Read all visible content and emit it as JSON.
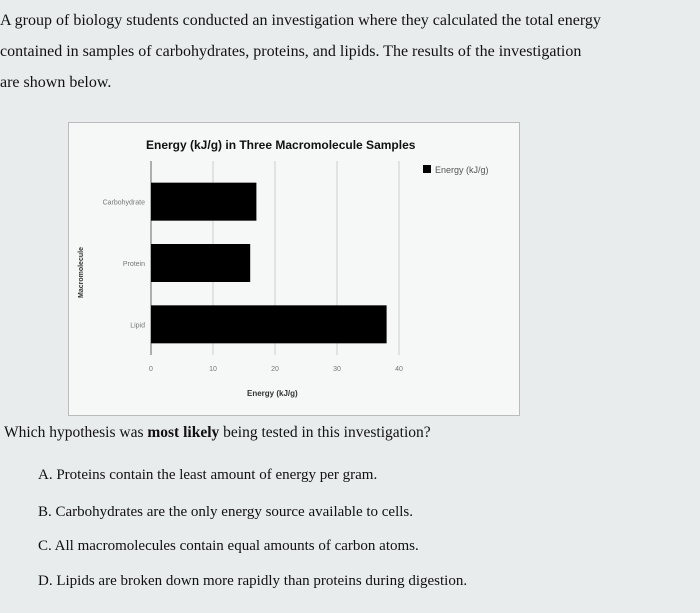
{
  "intro": [
    "A group of biology students conducted an investigation where they calculated the total energy",
    "contained in samples of carbohydrates, proteins, and lipids. The results of the investigation",
    "are shown below."
  ],
  "question": {
    "before": "Which hypothesis was ",
    "bold": "most likely",
    "after": " being tested in this investigation?"
  },
  "options": [
    "A.  Proteins contain the least amount of energy per gram.",
    "B.  Carbohydrates are the only energy source available to cells.",
    "C.  All macromolecules contain equal amounts of carbon atoms.",
    "D.  Lipids are broken down more rapidly than proteins during digestion."
  ],
  "chart_data": {
    "type": "bar",
    "orientation": "horizontal",
    "title": "Energy (kJ/g) in Three Macromolecule Samples",
    "categories": [
      "Carbohydrate",
      "Protein",
      "Lipid"
    ],
    "series": [
      {
        "name": "Energy (kJ/g)",
        "values": [
          17,
          16,
          38
        ],
        "color": "#000000"
      }
    ],
    "xlabel": "Energy (kJ/g)",
    "ylabel": "Macromolecule",
    "xlim": [
      0,
      40
    ],
    "xticks": [
      0,
      10,
      20,
      30,
      40
    ],
    "grid": true,
    "legend": "top-right"
  }
}
